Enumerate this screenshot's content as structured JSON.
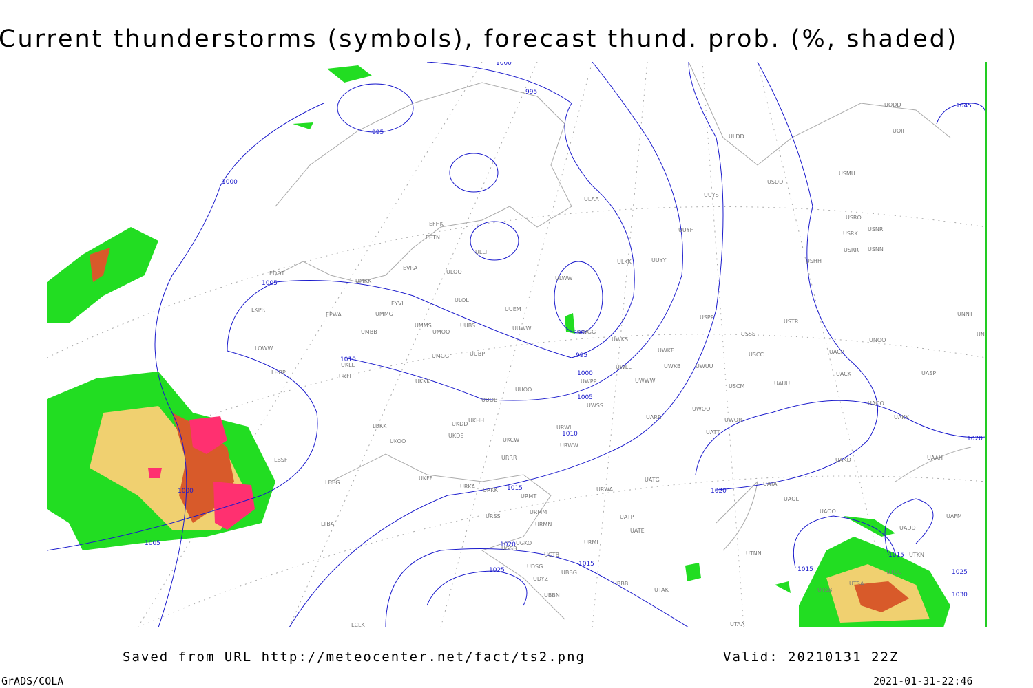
{
  "title": "Current thunderstorms (symbols), forecast thund. prob. (%, shaded)",
  "footer": {
    "source": "Saved from URL http://meteocenter.net/fact/ts2.png",
    "valid": "Valid: 20210131 22Z",
    "software": "GrADS/COLA",
    "timestamp": "2021-01-31-22:46"
  },
  "isobar_labels": [
    "1000",
    "995",
    "995",
    "1000",
    "1005",
    "1010",
    "990",
    "995",
    "1000",
    "1005",
    "1010",
    "1045",
    "1020",
    "1020",
    "1015",
    "1000",
    "1005",
    "1020",
    "1025",
    "1015",
    "1015",
    "1015",
    "1025",
    "1030"
  ],
  "stations": [
    "UODD",
    "UOII",
    "ULDD",
    "USMU",
    "USDD",
    "UUYS",
    "ULAA",
    "USRO",
    "USRK",
    "USNR",
    "UUYH",
    "USRR",
    "USNN",
    "EFHK",
    "EETN",
    "ULLI",
    "ULKK",
    "UUYY",
    "USHH",
    "EVRA",
    "ULOO",
    "EDDT",
    "UMKK",
    "ULWW",
    "EYVI",
    "ULOL",
    "UUEM",
    "LKPR",
    "EPWA",
    "UMMG",
    "USPP",
    "UUWW",
    "UMMS",
    "UMOO",
    "UUBS",
    "USTR",
    "UNNT",
    "UMBB",
    "UWGG",
    "USSS",
    "UWKS",
    "UNBB",
    "UNOO",
    "LOWW",
    "UUBP",
    "UMGG",
    "UWKE",
    "USCC",
    "UACP",
    "LHBP",
    "UKLL",
    "UWLL",
    "UWKB",
    "UWUU",
    "UACK",
    "UASP",
    "UKLI",
    "UWPP",
    "UWWW",
    "UKKK",
    "UUOO",
    "USCM",
    "UAUU",
    "UUOB",
    "UWSS",
    "UWOO",
    "UAOO",
    "UKHH",
    "LUKK",
    "UKOO",
    "UKDE",
    "UKDD",
    "UKCW",
    "URWI",
    "URWW",
    "UARR",
    "UWOR",
    "UATT",
    "UAKK",
    "URRR",
    "UAKD",
    "UAAH",
    "LBSF",
    "LBBG",
    "UKFF",
    "URKA",
    "URKK",
    "URMT",
    "URMM",
    "URWA",
    "UATG",
    "UATA",
    "UAOL",
    "URSS",
    "URMN",
    "UATP",
    "UATE",
    "UAOO",
    "UAFM",
    "UADD",
    "LTBA",
    "UGKO",
    "UGSB",
    "UGTB",
    "URML",
    "UTNN",
    "UTKN",
    "UDSG",
    "UBBG",
    "UDYZ",
    "UBBB",
    "UTAK",
    "UBBN",
    "UTDL",
    "UTSB",
    "UTSA",
    "LCLK",
    "UTAA"
  ]
}
